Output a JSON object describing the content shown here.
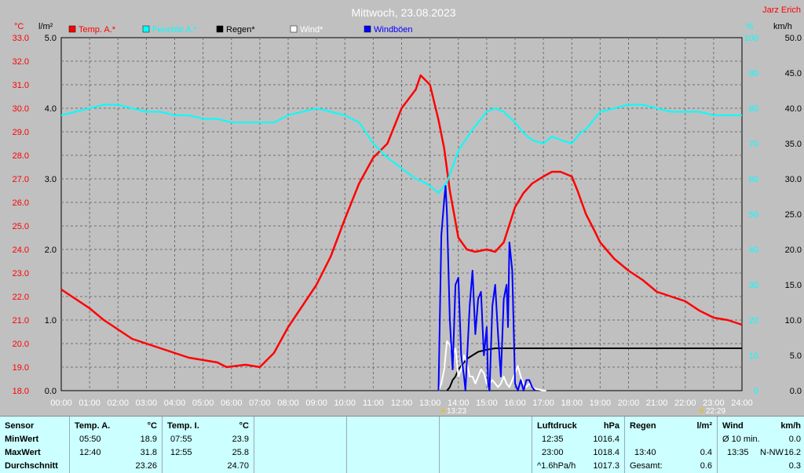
{
  "header": {
    "title": "Mittwoch, 23.08.2023",
    "author": "Jarz Erich",
    "unit_temp": "°C",
    "unit_rain": "l/m²",
    "unit_hum": "%",
    "unit_wind": "km/h"
  },
  "legend": [
    {
      "label": "Temp. A.*",
      "color": "#ff0000"
    },
    {
      "label": "Feuchte A.*",
      "color": "#00ffff"
    },
    {
      "label": "Regen*",
      "color": "#000000"
    },
    {
      "label": "Wind*",
      "color": "#ffffff"
    },
    {
      "label": "Windböen",
      "color": "#0000ff"
    }
  ],
  "markers": {
    "sunrise": "13:23",
    "sunset": "22:29"
  },
  "chart_data": {
    "type": "line",
    "title": "Mittwoch, 23.08.2023",
    "xlabel": "",
    "x_ticks": [
      "00:00",
      "01:00",
      "02:00",
      "03:00",
      "04:00",
      "05:00",
      "06:00",
      "07:00",
      "08:00",
      "09:00",
      "10:00",
      "11:00",
      "12:00",
      "13:00",
      "14:00",
      "15:00",
      "16:00",
      "17:00",
      "18:00",
      "19:00",
      "20:00",
      "21:00",
      "22:00",
      "23:00",
      "24:00"
    ],
    "xlim": [
      0,
      24
    ],
    "axes": {
      "temp": {
        "label": "°C",
        "range": [
          18,
          33
        ],
        "ticks": [
          "18.0",
          "19.0",
          "20.0",
          "21.0",
          "22.0",
          "23.0",
          "24.0",
          "25.0",
          "26.0",
          "27.0",
          "28.0",
          "29.0",
          "30.0",
          "31.0",
          "32.0",
          "33.0"
        ]
      },
      "rain": {
        "label": "l/m²",
        "range": [
          0,
          5
        ],
        "ticks": [
          "0.0",
          "1.0",
          "2.0",
          "3.0",
          "4.0",
          "5.0"
        ]
      },
      "hum": {
        "label": "%",
        "range": [
          0,
          100
        ],
        "ticks": [
          "0",
          "10",
          "20",
          "30",
          "40",
          "50",
          "60",
          "70",
          "80",
          "90",
          "100"
        ]
      },
      "wind": {
        "label": "km/h",
        "range": [
          0,
          50
        ],
        "ticks": [
          "0.0",
          "5.0",
          "10.0",
          "15.0",
          "20.0",
          "25.0",
          "30.0",
          "35.0",
          "40.0",
          "45.0",
          "50.0"
        ]
      }
    },
    "grid": true,
    "series": [
      {
        "name": "Temp. A.*",
        "axis": "temp",
        "color": "#ff0000",
        "x": [
          0,
          0.5,
          1,
          1.5,
          2,
          2.5,
          3,
          3.5,
          4,
          4.5,
          5,
          5.5,
          5.83,
          6.5,
          7,
          7.5,
          8,
          8.5,
          9,
          9.5,
          10,
          10.5,
          11,
          11.5,
          12,
          12.5,
          12.67,
          13,
          13.3,
          13.5,
          13.7,
          14,
          14.3,
          14.6,
          15,
          15.3,
          15.6,
          16,
          16.3,
          16.6,
          17,
          17.3,
          17.6,
          18,
          18.2,
          18.5,
          18.8,
          19,
          19.5,
          20,
          20.5,
          21,
          21.5,
          22,
          22.5,
          23,
          23.5,
          24
        ],
        "values": [
          22.3,
          21.9,
          21.5,
          21.0,
          20.6,
          20.2,
          20.0,
          19.8,
          19.6,
          19.4,
          19.3,
          19.2,
          19.0,
          19.1,
          19.0,
          19.6,
          20.7,
          21.6,
          22.5,
          23.7,
          25.3,
          26.8,
          27.9,
          28.5,
          30.0,
          30.8,
          31.4,
          31.0,
          29.5,
          28.3,
          26.5,
          24.5,
          24.0,
          23.9,
          24.0,
          23.9,
          24.3,
          25.8,
          26.4,
          26.8,
          27.1,
          27.3,
          27.3,
          27.1,
          26.5,
          25.5,
          24.8,
          24.3,
          23.6,
          23.1,
          22.7,
          22.2,
          22.0,
          21.8,
          21.4,
          21.1,
          21.0,
          20.8
        ]
      },
      {
        "name": "Feuchte A.*",
        "axis": "hum",
        "color": "#00ffff",
        "x": [
          0,
          0.5,
          1,
          1.5,
          2,
          2.5,
          3,
          3.5,
          4,
          4.5,
          5,
          5.5,
          6,
          6.5,
          7,
          7.5,
          8,
          8.5,
          9,
          9.5,
          10,
          10.5,
          11,
          11.5,
          12,
          12.5,
          12.8,
          13,
          13.3,
          13.6,
          14,
          14.5,
          15,
          15.3,
          15.6,
          16,
          16.3,
          16.6,
          17,
          17.3,
          17.6,
          18,
          18.3,
          18.5,
          18.8,
          19,
          19.5,
          20,
          20.5,
          21,
          21.5,
          22,
          22.5,
          23,
          23.5,
          24
        ],
        "values": [
          78,
          79,
          80,
          81,
          81,
          80,
          79,
          79,
          78,
          78,
          77,
          77,
          76,
          76,
          76,
          76,
          78,
          79,
          80,
          79,
          78,
          76,
          70,
          66,
          63,
          60,
          59,
          58,
          56,
          59,
          68,
          74,
          79,
          80,
          79,
          76,
          73,
          71,
          70,
          72,
          71,
          70,
          73,
          74,
          77,
          79,
          80,
          81,
          81,
          80,
          79,
          79,
          79,
          78,
          78,
          78
        ]
      },
      {
        "name": "Regen*",
        "axis": "rain",
        "color": "#000000",
        "x": [
          13.6,
          13.7,
          13.8,
          13.9,
          14.0,
          14.1,
          14.3,
          14.5,
          14.7,
          15.0,
          15.3,
          15.6,
          16,
          17,
          18,
          19,
          20,
          21,
          22,
          23,
          24
        ],
        "values": [
          0.0,
          0.05,
          0.15,
          0.2,
          0.3,
          0.35,
          0.45,
          0.5,
          0.55,
          0.58,
          0.6,
          0.6,
          0.6,
          0.6,
          0.6,
          0.6,
          0.6,
          0.6,
          0.6,
          0.6,
          0.6
        ]
      },
      {
        "name": "Wind*",
        "axis": "wind",
        "color": "#ffffff",
        "x": [
          13.3,
          13.4,
          13.5,
          13.6,
          13.7,
          13.8,
          13.9,
          14.0,
          14.1,
          14.2,
          14.3,
          14.4,
          14.5,
          14.6,
          14.7,
          14.8,
          14.9,
          15.0,
          15.1,
          15.2,
          15.3,
          15.4,
          15.5,
          15.6,
          15.7,
          15.8,
          15.9,
          16.0,
          16.1,
          16.2,
          16.3,
          16.4,
          16.5,
          16.6,
          16.7,
          16.8,
          16.9,
          17.0,
          17.1
        ],
        "values": [
          0,
          1,
          3,
          7,
          6.5,
          5,
          6,
          2,
          3,
          5,
          4,
          2,
          2,
          1,
          2,
          3,
          2.5,
          1,
          1,
          1.5,
          1,
          0.5,
          1,
          2,
          1,
          0.5,
          1.5,
          2.5,
          3.5,
          2,
          1,
          0.5,
          1,
          0.5,
          0.3,
          0.2,
          0.1,
          0,
          0
        ]
      },
      {
        "name": "Windböen",
        "axis": "wind",
        "color": "#0000ff",
        "x": [
          13.3,
          13.4,
          13.5,
          13.55,
          13.6,
          13.7,
          13.8,
          13.9,
          14.0,
          14.1,
          14.2,
          14.25,
          14.3,
          14.4,
          14.5,
          14.6,
          14.7,
          14.8,
          14.9,
          15.0,
          15.05,
          15.1,
          15.2,
          15.3,
          15.4,
          15.5,
          15.6,
          15.7,
          15.75,
          15.8,
          15.9,
          16.0,
          16.1,
          16.2,
          16.3,
          16.4,
          16.5,
          16.6,
          16.7
        ],
        "values": [
          0,
          22,
          27,
          29,
          25,
          10,
          3,
          15,
          16,
          5,
          2,
          0,
          4,
          12,
          17,
          8,
          13,
          14,
          5,
          9,
          1,
          0,
          12,
          15,
          8,
          2,
          13,
          15,
          9,
          21,
          17,
          1,
          0,
          1.5,
          0,
          1.5,
          1.5,
          0.5,
          0
        ]
      }
    ]
  },
  "stats": {
    "sensor": {
      "header": "Sensor",
      "rows": [
        "MinWert",
        "MaxWert",
        "Durchschnitt"
      ]
    },
    "temp_a": {
      "header": "Temp. A.",
      "unit": "°C",
      "rows": [
        [
          "05:50",
          "18.9"
        ],
        [
          "12:40",
          "31.8"
        ],
        [
          "",
          "23.26"
        ]
      ]
    },
    "temp_i": {
      "header": "Temp. I.",
      "unit": "°C",
      "rows": [
        [
          "07:55",
          "23.9"
        ],
        [
          "12:55",
          "25.8"
        ],
        [
          "",
          "24.70"
        ]
      ]
    },
    "pressure": {
      "header": "Luftdruck",
      "unit": "hPa",
      "rows": [
        [
          "12:35",
          "1016.4"
        ],
        [
          "23:00",
          "1018.4"
        ],
        [
          "^1.6hPa/h",
          "1017.3"
        ]
      ]
    },
    "rain": {
      "header": "Regen",
      "unit": "l/m²",
      "rows": [
        [
          "",
          ""
        ],
        [
          "13:40",
          "0.4"
        ],
        [
          "Gesamt:",
          "0.6"
        ]
      ]
    },
    "wind": {
      "header": "Wind",
      "unit": "km/h",
      "rows": [
        [
          "Ø 10 min.",
          "",
          "0.0"
        ],
        [
          "13:35",
          "N-NW",
          "16.2"
        ],
        [
          "",
          "",
          "0.3"
        ]
      ]
    }
  }
}
